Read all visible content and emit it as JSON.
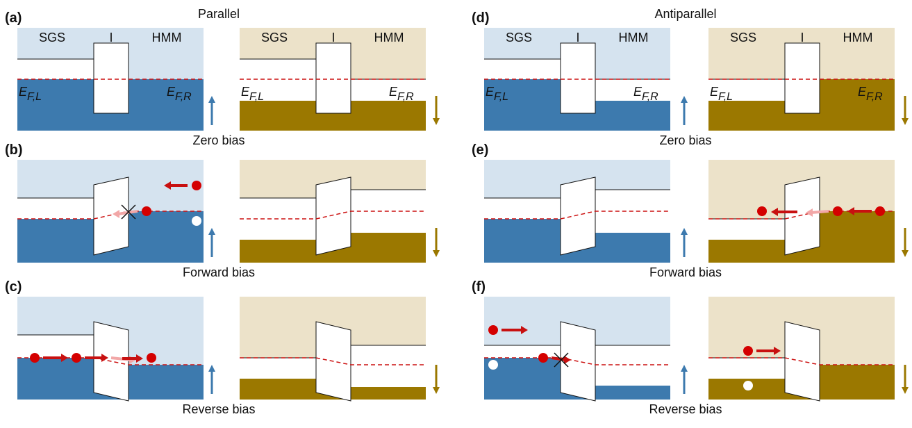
{
  "columns": [
    {
      "title": "Parallel",
      "panels": [
        {
          "label": "(a)",
          "caption": "Zero bias"
        },
        {
          "label": "(b)",
          "caption": "Forward bias"
        },
        {
          "label": "(c)",
          "caption": "Reverse bias"
        }
      ]
    },
    {
      "title": "Antiparallel",
      "panels": [
        {
          "label": "(d)",
          "caption": "Zero bias"
        },
        {
          "label": "(e)",
          "caption": "Forward bias"
        },
        {
          "label": "(f)",
          "caption": "Reverse bias"
        }
      ]
    }
  ],
  "region_labels": {
    "left": "SGS",
    "middle": "I",
    "right": "HMM"
  },
  "fermi_labels": {
    "symbol": "E",
    "left": "F,L",
    "right": "F,R"
  }
}
